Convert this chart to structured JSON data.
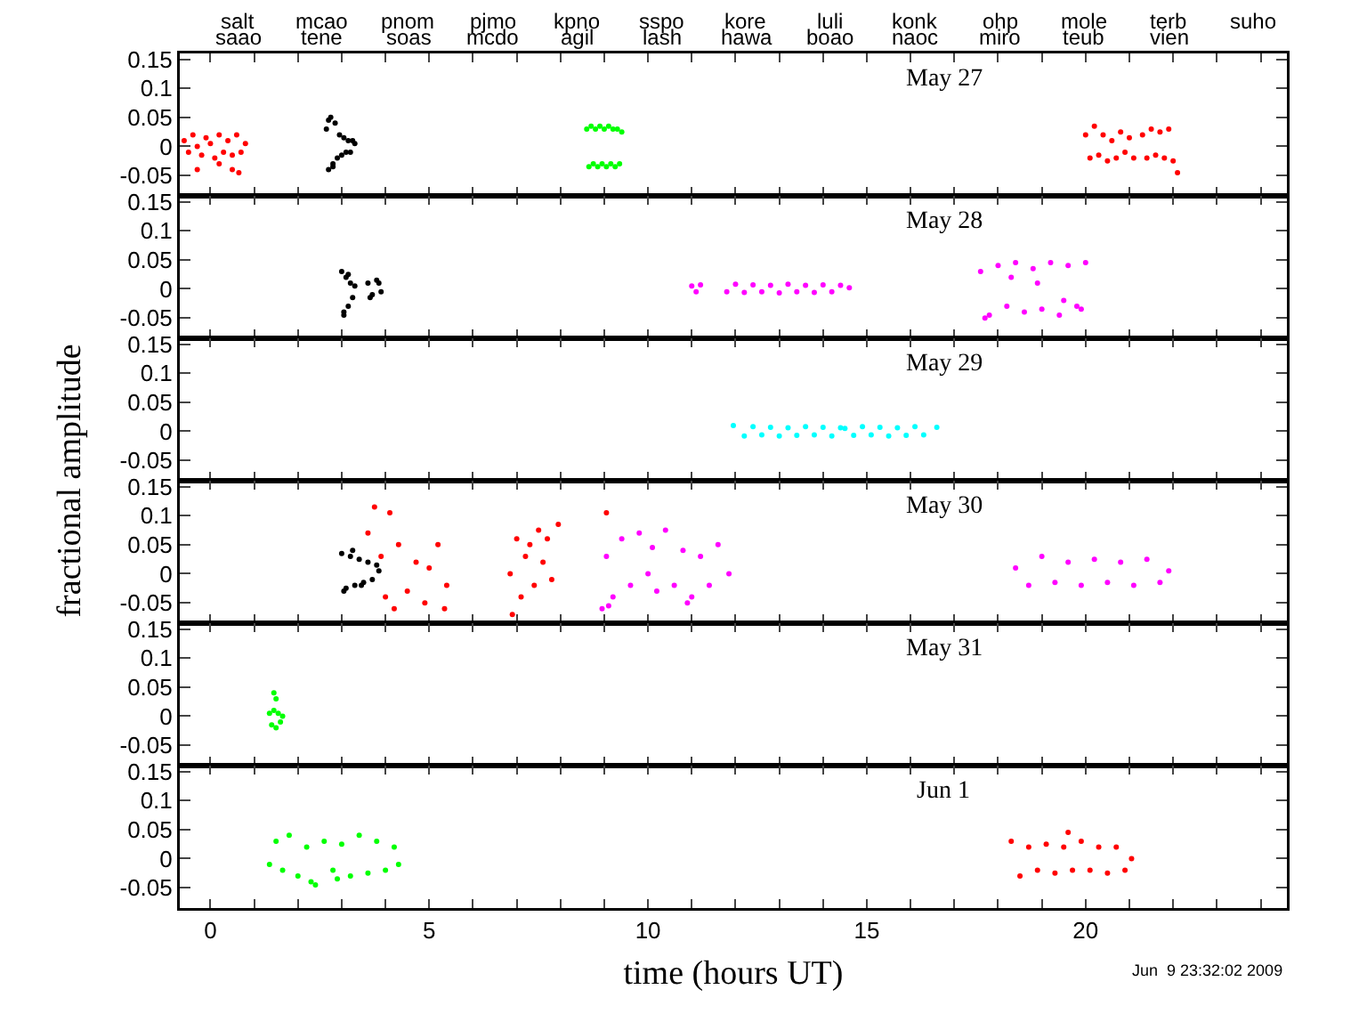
{
  "chart_data": [
    {
      "type": "scatter",
      "marker": "circle",
      "tick_labels": "y",
      "xlim": [
        -0.7,
        24.6
      ],
      "ylim": [
        -0.085,
        0.16
      ],
      "xticks": [
        {
          "value": 0,
          "label": null
        },
        {
          "value": 1,
          "label": null
        },
        {
          "value": 2,
          "label": null
        },
        {
          "value": 3,
          "label": null
        },
        {
          "value": 4,
          "label": null
        },
        {
          "value": 5,
          "label": null
        },
        {
          "value": 6,
          "label": null
        },
        {
          "value": 7,
          "label": null
        },
        {
          "value": 8,
          "label": null
        },
        {
          "value": 9,
          "label": null
        },
        {
          "value": 10,
          "label": null
        },
        {
          "value": 11,
          "label": null
        },
        {
          "value": 12,
          "label": null
        },
        {
          "value": 13,
          "label": null
        },
        {
          "value": 14,
          "label": null
        },
        {
          "value": 15,
          "label": null
        },
        {
          "value": 16,
          "label": null
        },
        {
          "value": 17,
          "label": null
        },
        {
          "value": 18,
          "label": null
        },
        {
          "value": 19,
          "label": null
        },
        {
          "value": 20,
          "label": null
        },
        {
          "value": 21,
          "label": null
        },
        {
          "value": 22,
          "label": null
        },
        {
          "value": 23,
          "label": null
        },
        {
          "value": 24,
          "label": null
        }
      ],
      "yticks": [
        -0.05,
        0,
        0.05,
        0.1,
        0.15
      ],
      "series": [
        {
          "color": "#ff0000",
          "x": [
            -0.6,
            -0.5,
            -0.4,
            -0.3,
            -0.2,
            -0.1,
            0,
            0.1,
            0.2,
            0.3,
            0.4,
            0.5,
            0.6,
            0.7,
            0.8,
            -0.3,
            0.2,
            0.5,
            0.65,
            20.0,
            20.1,
            20.2,
            20.3,
            20.4,
            20.5,
            20.6,
            20.7,
            20.8,
            20.9,
            21.0,
            21.1,
            21.3,
            21.4,
            21.5,
            21.6,
            21.7,
            21.8,
            21.9,
            22.0,
            22.1
          ],
          "values": [
            0.01,
            -0.01,
            0.02,
            0,
            -0.015,
            0.015,
            0.005,
            -0.02,
            0.02,
            -0.01,
            0.01,
            -0.015,
            0.02,
            -0.01,
            0.005,
            -0.04,
            -0.03,
            -0.04,
            -0.045,
            0.02,
            -0.02,
            0.035,
            -0.015,
            0.02,
            -0.025,
            0.01,
            -0.02,
            0.025,
            -0.01,
            0.015,
            -0.02,
            0.02,
            -0.02,
            0.03,
            -0.015,
            0.025,
            -0.02,
            0.03,
            -0.025,
            -0.045
          ]
        },
        {
          "color": "#000000",
          "x": [
            2.65,
            2.7,
            2.75,
            2.8,
            2.85,
            2.9,
            2.95,
            3.0,
            3.05,
            3.1,
            3.15,
            3.2,
            3.25,
            3.3,
            2.7,
            2.8
          ],
          "values": [
            0.03,
            -0.04,
            0.05,
            -0.03,
            0.04,
            -0.02,
            0.02,
            -0.015,
            0.015,
            -0.01,
            0.01,
            -0.01,
            0.01,
            0.005,
            0.045,
            -0.035
          ]
        },
        {
          "color": "#00ff00",
          "x": [
            8.6,
            8.65,
            8.7,
            8.75,
            8.8,
            8.85,
            8.9,
            8.95,
            9.0,
            9.05,
            9.1,
            9.15,
            9.2,
            9.25,
            9.3,
            9.35,
            9.4
          ],
          "values": [
            0.03,
            -0.035,
            0.035,
            -0.03,
            0.03,
            -0.035,
            0.035,
            -0.03,
            0.03,
            -0.035,
            0.035,
            -0.03,
            0.03,
            -0.035,
            0.03,
            -0.03,
            0.025
          ]
        }
      ],
      "annotations": [
        "May 27",
        "salt",
        "saao",
        "mcao",
        "tene",
        "pnom",
        "soas",
        "pjmo",
        "mcdo",
        "kpno",
        "agil",
        "sspo",
        "lash",
        "kore",
        "hawa",
        "luli",
        "boao",
        "konk",
        "naoc",
        "ohp",
        "miro",
        "mole",
        "teub",
        "terb",
        "vien",
        "suho"
      ]
    },
    {
      "type": "scatter",
      "marker": "circle",
      "tick_labels": "y",
      "xlim": [
        -0.7,
        24.6
      ],
      "ylim": [
        -0.085,
        0.16
      ],
      "xticks": [
        {
          "value": 0,
          "label": null
        },
        {
          "value": 1,
          "label": null
        },
        {
          "value": 2,
          "label": null
        },
        {
          "value": 3,
          "label": null
        },
        {
          "value": 4,
          "label": null
        },
        {
          "value": 5,
          "label": null
        },
        {
          "value": 6,
          "label": null
        },
        {
          "value": 7,
          "label": null
        },
        {
          "value": 8,
          "label": null
        },
        {
          "value": 9,
          "label": null
        },
        {
          "value": 10,
          "label": null
        },
        {
          "value": 11,
          "label": null
        },
        {
          "value": 12,
          "label": null
        },
        {
          "value": 13,
          "label": null
        },
        {
          "value": 14,
          "label": null
        },
        {
          "value": 15,
          "label": null
        },
        {
          "value": 16,
          "label": null
        },
        {
          "value": 17,
          "label": null
        },
        {
          "value": 18,
          "label": null
        },
        {
          "value": 19,
          "label": null
        },
        {
          "value": 20,
          "label": null
        },
        {
          "value": 21,
          "label": null
        },
        {
          "value": 22,
          "label": null
        },
        {
          "value": 23,
          "label": null
        },
        {
          "value": 24,
          "label": null
        }
      ],
      "yticks": [
        -0.05,
        0,
        0.05,
        0.1,
        0.15
      ],
      "series": [
        {
          "color": "#000000",
          "x": [
            3.0,
            3.05,
            3.1,
            3.15,
            3.2,
            3.25,
            3.3,
            3.05,
            3.15,
            3.6,
            3.7,
            3.8,
            3.9,
            3.65,
            3.85
          ],
          "values": [
            0.03,
            -0.04,
            0.02,
            -0.03,
            0.01,
            -0.015,
            0.005,
            -0.045,
            0.025,
            0.01,
            -0.01,
            0.015,
            -0.005,
            -0.015,
            0.01
          ]
        },
        {
          "color": "#ff00ff",
          "x": [
            11.0,
            11.1,
            11.2,
            11.8,
            12.0,
            12.2,
            12.4,
            12.6,
            12.8,
            13.0,
            13.2,
            13.4,
            13.6,
            13.8,
            14.0,
            14.2,
            14.4,
            14.6,
            17.6,
            17.8,
            18.0,
            18.2,
            18.4,
            18.6,
            18.8,
            19.0,
            19.2,
            19.4,
            19.6,
            19.8,
            20.0,
            17.7,
            18.3,
            18.9,
            19.5,
            19.9
          ],
          "values": [
            0.005,
            -0.005,
            0.007,
            -0.005,
            0.008,
            -0.006,
            0.007,
            -0.005,
            0.006,
            -0.007,
            0.008,
            -0.005,
            0.006,
            -0.006,
            0.007,
            -0.005,
            0.006,
            0.002,
            0.03,
            -0.045,
            0.04,
            -0.03,
            0.045,
            -0.04,
            0.035,
            -0.035,
            0.045,
            -0.045,
            0.04,
            -0.03,
            0.045,
            -0.05,
            0.02,
            0.01,
            -0.02,
            -0.035
          ]
        }
      ],
      "annotations": [
        "May 28"
      ]
    },
    {
      "type": "scatter",
      "marker": "circle",
      "tick_labels": "y",
      "xlim": [
        -0.7,
        24.6
      ],
      "ylim": [
        -0.085,
        0.16
      ],
      "ylabel": "fractional amplitude",
      "xticks": [
        {
          "value": 0,
          "label": null
        },
        {
          "value": 1,
          "label": null
        },
        {
          "value": 2,
          "label": null
        },
        {
          "value": 3,
          "label": null
        },
        {
          "value": 4,
          "label": null
        },
        {
          "value": 5,
          "label": null
        },
        {
          "value": 6,
          "label": null
        },
        {
          "value": 7,
          "label": null
        },
        {
          "value": 8,
          "label": null
        },
        {
          "value": 9,
          "label": null
        },
        {
          "value": 10,
          "label": null
        },
        {
          "value": 11,
          "label": null
        },
        {
          "value": 12,
          "label": null
        },
        {
          "value": 13,
          "label": null
        },
        {
          "value": 14,
          "label": null
        },
        {
          "value": 15,
          "label": null
        },
        {
          "value": 16,
          "label": null
        },
        {
          "value": 17,
          "label": null
        },
        {
          "value": 18,
          "label": null
        },
        {
          "value": 19,
          "label": null
        },
        {
          "value": 20,
          "label": null
        },
        {
          "value": 21,
          "label": null
        },
        {
          "value": 22,
          "label": null
        },
        {
          "value": 23,
          "label": null
        },
        {
          "value": 24,
          "label": null
        }
      ],
      "yticks": [
        -0.05,
        0,
        0.05,
        0.1,
        0.15
      ],
      "series": [
        {
          "color": "#00ffff",
          "x": [
            11.95,
            12.2,
            12.4,
            12.6,
            12.8,
            13.0,
            13.2,
            13.4,
            13.6,
            13.8,
            14.0,
            14.2,
            14.4,
            14.5,
            14.7,
            14.9,
            15.1,
            15.3,
            15.5,
            15.7,
            15.9,
            16.1,
            16.3,
            16.6
          ],
          "values": [
            0.01,
            -0.008,
            0.008,
            -0.006,
            0.007,
            -0.008,
            0.006,
            -0.007,
            0.008,
            -0.006,
            0.007,
            -0.008,
            0.006,
            0.005,
            -0.007,
            0.008,
            -0.006,
            0.007,
            -0.008,
            0.006,
            -0.007,
            0.008,
            -0.006,
            0.007
          ]
        }
      ],
      "annotations": [
        "May 29"
      ]
    },
    {
      "type": "scatter",
      "marker": "circle",
      "tick_labels": "y",
      "xlim": [
        -0.7,
        24.6
      ],
      "ylim": [
        -0.085,
        0.16
      ],
      "xticks": [
        {
          "value": 0,
          "label": null
        },
        {
          "value": 1,
          "label": null
        },
        {
          "value": 2,
          "label": null
        },
        {
          "value": 3,
          "label": null
        },
        {
          "value": 4,
          "label": null
        },
        {
          "value": 5,
          "label": null
        },
        {
          "value": 6,
          "label": null
        },
        {
          "value": 7,
          "label": null
        },
        {
          "value": 8,
          "label": null
        },
        {
          "value": 9,
          "label": null
        },
        {
          "value": 10,
          "label": null
        },
        {
          "value": 11,
          "label": null
        },
        {
          "value": 12,
          "label": null
        },
        {
          "value": 13,
          "label": null
        },
        {
          "value": 14,
          "label": null
        },
        {
          "value": 15,
          "label": null
        },
        {
          "value": 16,
          "label": null
        },
        {
          "value": 17,
          "label": null
        },
        {
          "value": 18,
          "label": null
        },
        {
          "value": 19,
          "label": null
        },
        {
          "value": 20,
          "label": null
        },
        {
          "value": 21,
          "label": null
        },
        {
          "value": 22,
          "label": null
        },
        {
          "value": 23,
          "label": null
        },
        {
          "value": 24,
          "label": null
        }
      ],
      "yticks": [
        -0.05,
        0,
        0.05,
        0.1,
        0.15
      ],
      "series": [
        {
          "color": "#000000",
          "x": [
            3.0,
            3.1,
            3.2,
            3.3,
            3.4,
            3.5,
            3.6,
            3.7,
            3.8,
            3.85,
            3.05,
            3.25,
            3.45
          ],
          "values": [
            0.035,
            -0.025,
            0.03,
            -0.02,
            0.025,
            -0.015,
            0.02,
            -0.01,
            0.015,
            0.005,
            -0.03,
            0.04,
            -0.02
          ]
        },
        {
          "color": "#ff0000",
          "x": [
            3.6,
            3.75,
            3.9,
            4.0,
            4.1,
            4.2,
            4.3,
            4.5,
            4.7,
            4.9,
            5.0,
            5.2,
            5.35,
            5.4,
            6.85,
            6.9,
            7.0,
            7.1,
            7.2,
            7.3,
            7.4,
            7.5,
            7.6,
            7.7,
            7.8,
            7.95,
            9.05
          ],
          "values": [
            0.07,
            0.115,
            0.03,
            -0.04,
            0.105,
            -0.06,
            0.05,
            -0.03,
            0.02,
            -0.05,
            0.01,
            0.05,
            -0.06,
            -0.02,
            0.0,
            -0.07,
            0.06,
            -0.04,
            0.03,
            0.05,
            -0.02,
            0.075,
            0.02,
            0.06,
            -0.01,
            0.085,
            0.105
          ]
        },
        {
          "color": "#ff00ff",
          "x": [
            8.95,
            9.05,
            9.2,
            9.4,
            9.6,
            9.8,
            10.0,
            10.2,
            10.4,
            10.6,
            10.8,
            11.0,
            11.2,
            11.4,
            11.6,
            11.85,
            9.1,
            10.1,
            10.9,
            18.4,
            18.7,
            19.0,
            19.3,
            19.6,
            19.9,
            20.2,
            20.5,
            20.8,
            21.1,
            21.4,
            21.7,
            21.9
          ],
          "values": [
            -0.06,
            0.03,
            -0.04,
            0.06,
            -0.02,
            0.07,
            0.0,
            -0.03,
            0.075,
            -0.02,
            0.04,
            -0.04,
            0.03,
            -0.02,
            0.05,
            0.0,
            -0.055,
            0.045,
            -0.05,
            0.01,
            -0.02,
            0.03,
            -0.015,
            0.02,
            -0.02,
            0.025,
            -0.015,
            0.02,
            -0.02,
            0.025,
            -0.015,
            0.005
          ]
        }
      ],
      "annotations": [
        "May 30"
      ]
    },
    {
      "type": "scatter",
      "marker": "circle",
      "tick_labels": "y",
      "xlim": [
        -0.7,
        24.6
      ],
      "ylim": [
        -0.085,
        0.16
      ],
      "xticks": [
        {
          "value": 0,
          "label": null
        },
        {
          "value": 1,
          "label": null
        },
        {
          "value": 2,
          "label": null
        },
        {
          "value": 3,
          "label": null
        },
        {
          "value": 4,
          "label": null
        },
        {
          "value": 5,
          "label": null
        },
        {
          "value": 6,
          "label": null
        },
        {
          "value": 7,
          "label": null
        },
        {
          "value": 8,
          "label": null
        },
        {
          "value": 9,
          "label": null
        },
        {
          "value": 10,
          "label": null
        },
        {
          "value": 11,
          "label": null
        },
        {
          "value": 12,
          "label": null
        },
        {
          "value": 13,
          "label": null
        },
        {
          "value": 14,
          "label": null
        },
        {
          "value": 15,
          "label": null
        },
        {
          "value": 16,
          "label": null
        },
        {
          "value": 17,
          "label": null
        },
        {
          "value": 18,
          "label": null
        },
        {
          "value": 19,
          "label": null
        },
        {
          "value": 20,
          "label": null
        },
        {
          "value": 21,
          "label": null
        },
        {
          "value": 22,
          "label": null
        },
        {
          "value": 23,
          "label": null
        },
        {
          "value": 24,
          "label": null
        }
      ],
      "yticks": [
        -0.05,
        0,
        0.05,
        0.1,
        0.15
      ],
      "series": [
        {
          "color": "#00ff00",
          "x": [
            1.35,
            1.4,
            1.45,
            1.5,
            1.55,
            1.6,
            1.65,
            1.45,
            1.5
          ],
          "values": [
            0.005,
            -0.015,
            0.01,
            -0.02,
            0.005,
            -0.01,
            0.0,
            0.04,
            0.03
          ]
        }
      ],
      "annotations": [
        "May 31"
      ]
    },
    {
      "type": "scatter",
      "marker": "circle",
      "xlim": [
        -0.7,
        24.6
      ],
      "ylim": [
        -0.085,
        0.16
      ],
      "xlabel": "time (hours UT)",
      "xticks": [
        0,
        {
          "value": 1,
          "label": null
        },
        {
          "value": 2,
          "label": null
        },
        {
          "value": 3,
          "label": null
        },
        {
          "value": 4,
          "label": null
        },
        5,
        {
          "value": 6,
          "label": null
        },
        {
          "value": 7,
          "label": null
        },
        {
          "value": 8,
          "label": null
        },
        {
          "value": 9,
          "label": null
        },
        10,
        {
          "value": 11,
          "label": null
        },
        {
          "value": 12,
          "label": null
        },
        {
          "value": 13,
          "label": null
        },
        {
          "value": 14,
          "label": null
        },
        15,
        {
          "value": 16,
          "label": null
        },
        {
          "value": 17,
          "label": null
        },
        {
          "value": 18,
          "label": null
        },
        {
          "value": 19,
          "label": null
        },
        20,
        {
          "value": 21,
          "label": null
        },
        {
          "value": 22,
          "label": null
        },
        {
          "value": 23,
          "label": null
        },
        {
          "value": 24,
          "label": null
        }
      ],
      "yticks": [
        -0.05,
        0,
        0.05,
        0.1,
        0.15
      ],
      "series": [
        {
          "color": "#00ff00",
          "x": [
            1.35,
            1.5,
            1.65,
            1.8,
            2.0,
            2.2,
            2.4,
            2.6,
            2.8,
            3.0,
            3.2,
            3.4,
            3.6,
            3.8,
            4.0,
            4.2,
            4.3,
            2.3,
            2.9
          ],
          "values": [
            -0.01,
            0.03,
            -0.02,
            0.04,
            -0.03,
            0.02,
            -0.045,
            0.03,
            -0.02,
            0.025,
            -0.03,
            0.04,
            -0.025,
            0.03,
            -0.02,
            0.02,
            -0.01,
            -0.04,
            -0.035
          ]
        },
        {
          "color": "#ff0000",
          "x": [
            18.3,
            18.5,
            18.7,
            18.9,
            19.1,
            19.3,
            19.5,
            19.7,
            19.9,
            20.1,
            20.3,
            20.5,
            20.7,
            20.9,
            21.05,
            19.6
          ],
          "values": [
            0.03,
            -0.03,
            0.02,
            -0.02,
            0.025,
            -0.025,
            0.02,
            -0.02,
            0.03,
            -0.02,
            0.02,
            -0.025,
            0.02,
            -0.02,
            0.0,
            0.045
          ]
        }
      ],
      "annotations": [
        "Jun 1",
        "Jun  9 23:32:02 2009"
      ]
    }
  ]
}
